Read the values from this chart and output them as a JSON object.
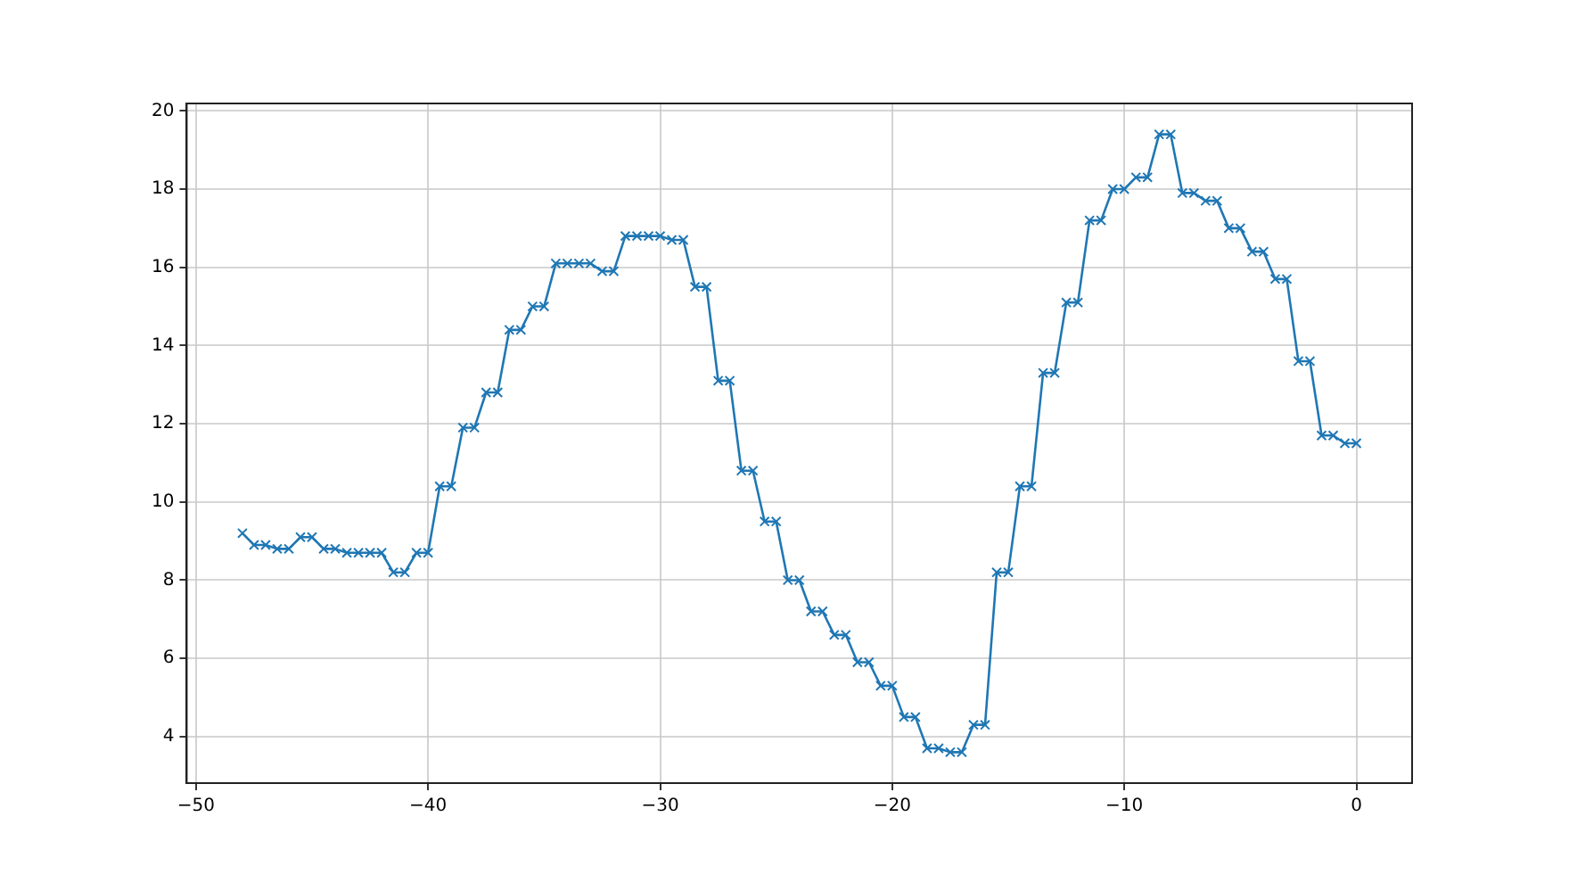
{
  "chart_data": {
    "type": "line",
    "x": [
      -48,
      -47.5,
      -47,
      -46.5,
      -46,
      -45.5,
      -45,
      -44.5,
      -44,
      -43.5,
      -43,
      -42.5,
      -42,
      -41.5,
      -41,
      -40.5,
      -40,
      -39.5,
      -39,
      -38.5,
      -38,
      -37.5,
      -37,
      -36.5,
      -36,
      -35.5,
      -35,
      -34.5,
      -34,
      -33.5,
      -33,
      -32.5,
      -32,
      -31.5,
      -31,
      -30.5,
      -30,
      -29.5,
      -29,
      -28.5,
      -28,
      -27.5,
      -27,
      -26.5,
      -26,
      -25.5,
      -25,
      -24.5,
      -24,
      -23.5,
      -23,
      -22.5,
      -22,
      -21.5,
      -21,
      -20.5,
      -20,
      -19.5,
      -19,
      -18.5,
      -18,
      -17.5,
      -17,
      -16.5,
      -16,
      -15.5,
      -15,
      -14.5,
      -14,
      -13.5,
      -13,
      -12.5,
      -12,
      -11.5,
      -11,
      -10.5,
      -10,
      -9.5,
      -9,
      -8.5,
      -8,
      -7.5,
      -7,
      -6.5,
      -6,
      -5.5,
      -5,
      -4.5,
      -4,
      -3.5,
      -3,
      -2.5,
      -2,
      -1.5,
      -1,
      -0.5,
      0
    ],
    "series": [
      {
        "color": "#1f77b4",
        "values": [
          9.2,
          8.9,
          8.9,
          8.8,
          8.8,
          9.1,
          9.1,
          8.8,
          8.8,
          8.7,
          8.7,
          8.7,
          8.7,
          8.2,
          8.2,
          8.7,
          8.7,
          10.4,
          10.4,
          11.9,
          11.9,
          12.8,
          12.8,
          14.4,
          14.4,
          15.0,
          15.0,
          16.1,
          16.1,
          16.1,
          16.1,
          15.9,
          15.9,
          16.8,
          16.8,
          16.8,
          16.8,
          16.7,
          16.7,
          15.5,
          15.5,
          13.1,
          13.1,
          10.8,
          10.8,
          9.5,
          9.5,
          8.0,
          8.0,
          7.2,
          7.2,
          6.6,
          6.6,
          5.9,
          5.9,
          5.3,
          5.3,
          4.5,
          4.5,
          3.7,
          3.7,
          3.6,
          3.6,
          4.3,
          4.3,
          8.2,
          8.2,
          10.4,
          10.4,
          13.3,
          13.3,
          15.1,
          15.1,
          17.2,
          17.2,
          18.0,
          18.0,
          18.3,
          18.3,
          19.4,
          19.4,
          17.9,
          17.9,
          17.7,
          17.7,
          17.0,
          17.0,
          16.4,
          16.4,
          15.7,
          15.7,
          13.6,
          13.6,
          11.7,
          11.7,
          11.5,
          11.5
        ]
      }
    ],
    "xlim": [
      -50.4,
      2.4
    ],
    "xticks": [
      -50,
      -40,
      -30,
      -20,
      -10,
      0
    ],
    "ylim": [
      2.81,
      20.19
    ],
    "yticks": [
      4,
      6,
      8,
      10,
      12,
      14,
      16,
      18,
      20
    ],
    "grid": true,
    "marker": "cross",
    "line_style": "solid"
  }
}
